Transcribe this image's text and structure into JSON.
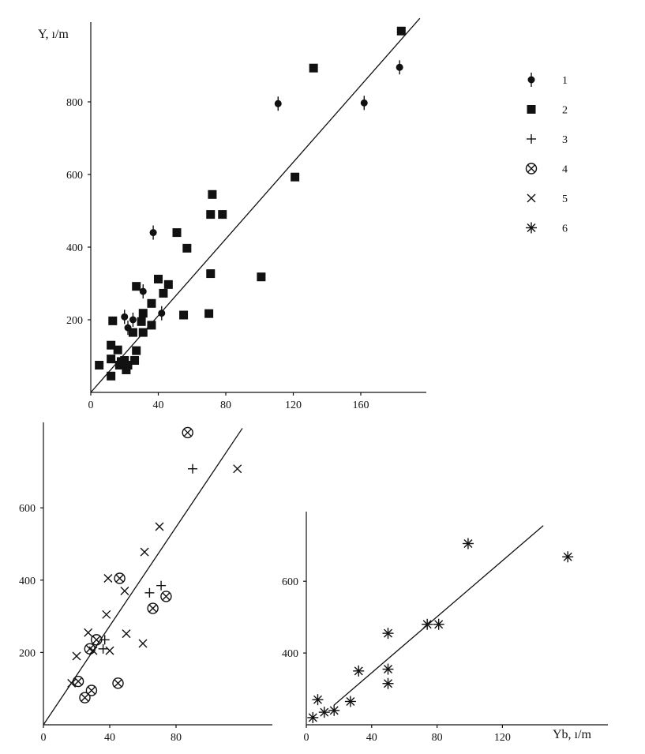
{
  "colors": {
    "ink": "#111111",
    "background": "#ffffff"
  },
  "legend": {
    "items": [
      {
        "label": "1",
        "marker": "dot-errorbar"
      },
      {
        "label": "2",
        "marker": "square"
      },
      {
        "label": "3",
        "marker": "plus"
      },
      {
        "label": "4",
        "marker": "circle-x"
      },
      {
        "label": "5",
        "marker": "x"
      },
      {
        "label": "6",
        "marker": "asterisk"
      }
    ]
  },
  "chart_data": [
    {
      "id": "top",
      "type": "scatter",
      "ylabel": "Y, ı/m",
      "xlabel": "",
      "xlim": [
        0,
        200
      ],
      "ylim": [
        0,
        1000
      ],
      "xticks": [
        0,
        40,
        80,
        120,
        160
      ],
      "yticks": [
        200,
        400,
        600,
        800
      ],
      "fit_line": [
        [
          0,
          0
        ],
        [
          195,
          1030
        ]
      ],
      "series": [
        {
          "name": "1",
          "marker": "dot-errorbar",
          "points": [
            [
              37,
              440
            ],
            [
              20,
              208
            ],
            [
              25,
              200
            ],
            [
              31,
              278
            ],
            [
              42,
              218
            ],
            [
              22,
              178
            ],
            [
              111,
              795
            ],
            [
              162,
              797
            ],
            [
              183,
              895
            ]
          ]
        },
        {
          "name": "2",
          "marker": "square",
          "points": [
            [
              5,
              75
            ],
            [
              12,
              130
            ],
            [
              13,
              197
            ],
            [
              12,
              92
            ],
            [
              12,
              45
            ],
            [
              16,
              117
            ],
            [
              17,
              75
            ],
            [
              18,
              85
            ],
            [
              20,
              88
            ],
            [
              21,
              62
            ],
            [
              22,
              75
            ],
            [
              25,
              165
            ],
            [
              26,
              88
            ],
            [
              27,
              115
            ],
            [
              27,
              292
            ],
            [
              30,
              195
            ],
            [
              31,
              218
            ],
            [
              31,
              165
            ],
            [
              36,
              185
            ],
            [
              36,
              245
            ],
            [
              40,
              312
            ],
            [
              43,
              273
            ],
            [
              46,
              297
            ],
            [
              51,
              440
            ],
            [
              55,
              213
            ],
            [
              57,
              397
            ],
            [
              70,
              217
            ],
            [
              71,
              327
            ],
            [
              71,
              490
            ],
            [
              72,
              545
            ],
            [
              78,
              490
            ],
            [
              101,
              318
            ],
            [
              121,
              593
            ],
            [
              132,
              893
            ],
            [
              184,
              995
            ]
          ]
        }
      ]
    },
    {
      "id": "bottom-left",
      "type": "scatter",
      "xlabel": "",
      "ylabel": "",
      "xlim": [
        0,
        120
      ],
      "ylim": [
        0,
        850
      ],
      "xticks": [
        0,
        40,
        80
      ],
      "yticks": [
        200,
        400,
        600
      ],
      "fit_line": [
        [
          0,
          0
        ],
        [
          120,
          820
        ]
      ],
      "series": [
        {
          "name": "3",
          "marker": "plus",
          "points": [
            [
              36,
              210
            ],
            [
              37,
              235
            ],
            [
              64,
              365
            ],
            [
              71,
              385
            ],
            [
              90,
              708
            ]
          ]
        },
        {
          "name": "4",
          "marker": "circle-x",
          "points": [
            [
              21,
              120
            ],
            [
              25,
              75
            ],
            [
              29,
              95
            ],
            [
              28,
              210
            ],
            [
              32,
              235
            ],
            [
              45,
              115
            ],
            [
              46,
              405
            ],
            [
              66,
              322
            ],
            [
              74,
              355
            ],
            [
              87,
              808
            ]
          ]
        },
        {
          "name": "5",
          "marker": "x",
          "points": [
            [
              17,
              115
            ],
            [
              20,
              190
            ],
            [
              27,
              255
            ],
            [
              30,
              205
            ],
            [
              38,
              305
            ],
            [
              39,
              405
            ],
            [
              40,
              205
            ],
            [
              49,
              370
            ],
            [
              50,
              252
            ],
            [
              60,
              225
            ],
            [
              61,
              478
            ],
            [
              70,
              548
            ],
            [
              117,
              708
            ]
          ]
        }
      ]
    },
    {
      "id": "bottom-right",
      "type": "scatter",
      "xlabel": "Yb, ı/m",
      "ylabel": "",
      "xlim": [
        0,
        165
      ],
      "ylim": [
        200,
        740
      ],
      "xticks": [
        0,
        40,
        80,
        120
      ],
      "yticks": [
        400,
        600
      ],
      "fit_line": [
        [
          17,
          255
        ],
        [
          145,
          755
        ]
      ],
      "series": [
        {
          "name": "6",
          "marker": "asterisk",
          "points": [
            [
              4,
              220
            ],
            [
              7,
              270
            ],
            [
              11,
              235
            ],
            [
              17,
              240
            ],
            [
              27,
              265
            ],
            [
              32,
              350
            ],
            [
              50,
              455
            ],
            [
              50,
              355
            ],
            [
              50,
              315
            ],
            [
              74,
              480
            ],
            [
              81,
              480
            ],
            [
              99,
              705
            ],
            [
              160,
              668
            ]
          ]
        }
      ]
    }
  ]
}
